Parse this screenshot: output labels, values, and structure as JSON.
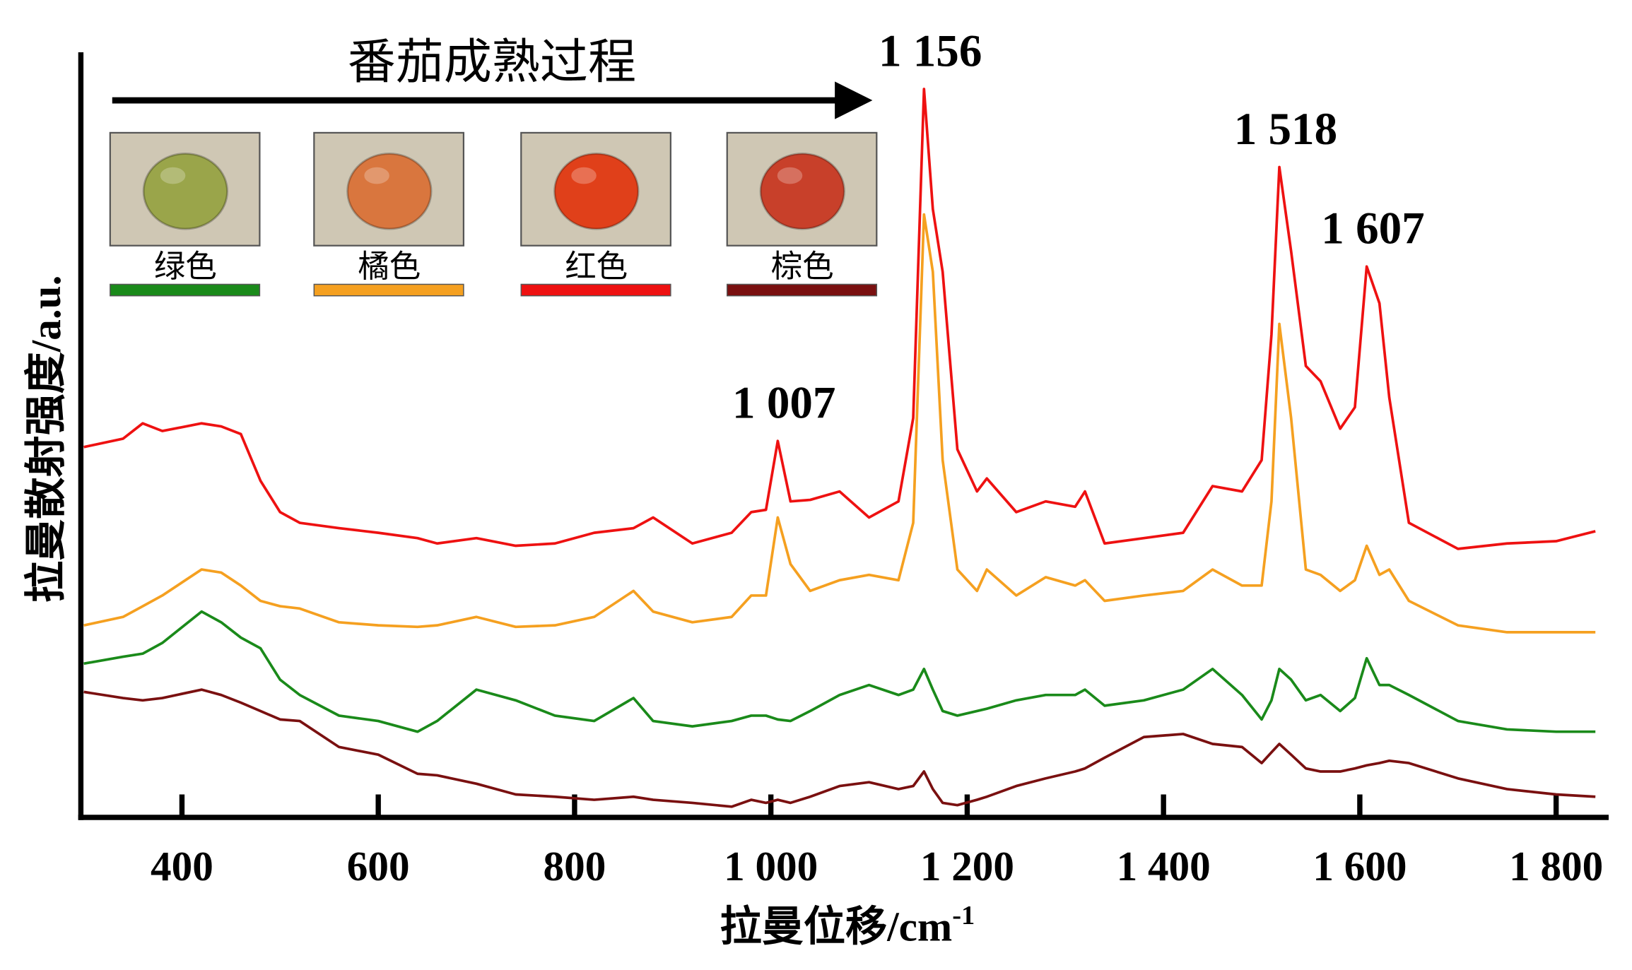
{
  "chart_data": {
    "type": "line",
    "title": "番茄成熟过程",
    "x_label": "拉曼位移/cm",
    "x_label_superscript": "-1",
    "y_label": "拉曼散射强度/a.u.",
    "xlim": [
      297,
      1845
    ],
    "ylim": [
      0,
      100
    ],
    "xticks": [
      400,
      600,
      800,
      {
        "value": 1000,
        "label": "1 000"
      },
      {
        "value": 1200,
        "label": "1 200"
      },
      {
        "value": 1400,
        "label": "1 400"
      },
      {
        "value": 1600,
        "label": "1 600"
      },
      {
        "value": 1800,
        "label": "1 800"
      }
    ],
    "x": [
      300,
      340,
      360,
      380,
      420,
      440,
      460,
      480,
      500,
      520,
      560,
      600,
      640,
      660,
      700,
      740,
      780,
      820,
      860,
      880,
      920,
      960,
      980,
      995,
      1007,
      1020,
      1040,
      1070,
      1100,
      1130,
      1145,
      1156,
      1165,
      1175,
      1190,
      1210,
      1220,
      1250,
      1280,
      1310,
      1320,
      1340,
      1380,
      1420,
      1450,
      1480,
      1500,
      1510,
      1518,
      1530,
      1545,
      1560,
      1580,
      1595,
      1607,
      1620,
      1630,
      1650,
      1700,
      1750,
      1800,
      1840
    ],
    "series": [
      {
        "name": "绿色",
        "color": "#1a8a1a",
        "values": [
          20.1,
          21.0,
          21.4,
          22.8,
          26.9,
          25.5,
          23.5,
          22.1,
          18.0,
          16.0,
          13.3,
          12.6,
          11.2,
          12.6,
          16.7,
          15.3,
          13.3,
          12.6,
          15.6,
          12.6,
          11.9,
          12.6,
          13.3,
          13.3,
          12.8,
          12.6,
          13.9,
          16.0,
          17.3,
          16.0,
          16.7,
          19.4,
          16.7,
          13.9,
          13.3,
          13.9,
          14.2,
          15.3,
          16.0,
          16.0,
          16.7,
          14.6,
          15.3,
          16.7,
          19.4,
          16.0,
          12.8,
          15.3,
          19.4,
          18.0,
          15.3,
          16.0,
          13.9,
          15.6,
          20.8,
          17.3,
          17.3,
          16.0,
          12.6,
          11.5,
          11.2,
          11.2
        ]
      },
      {
        "name": "橘色",
        "color": "#f5a020",
        "values": [
          25.1,
          26.2,
          27.6,
          29.0,
          32.4,
          32.0,
          30.3,
          28.3,
          27.6,
          27.3,
          25.5,
          25.1,
          24.9,
          25.1,
          26.2,
          24.9,
          25.1,
          26.2,
          29.6,
          26.9,
          25.5,
          26.2,
          29.0,
          29.0,
          39.2,
          33.1,
          29.6,
          31.0,
          31.7,
          31.0,
          38.5,
          78.8,
          71.3,
          46.7,
          32.4,
          29.6,
          32.4,
          29.0,
          31.4,
          30.3,
          31.0,
          28.3,
          29.0,
          29.6,
          32.4,
          30.3,
          30.3,
          41.3,
          64.5,
          52.2,
          32.4,
          31.7,
          29.6,
          31.0,
          35.5,
          31.7,
          32.4,
          28.3,
          25.1,
          24.2,
          24.2,
          24.2
        ]
      },
      {
        "name": "红色",
        "color": "#ee1111",
        "values": [
          48.4,
          49.5,
          51.5,
          50.5,
          51.5,
          51.1,
          50.1,
          44.0,
          39.9,
          38.5,
          37.8,
          37.2,
          36.5,
          35.8,
          36.5,
          35.5,
          35.8,
          37.2,
          37.8,
          39.2,
          35.8,
          37.2,
          39.9,
          40.2,
          49.2,
          41.3,
          41.5,
          42.6,
          39.2,
          41.3,
          52.2,
          95.2,
          79.5,
          71.3,
          48.1,
          42.6,
          44.3,
          39.9,
          41.3,
          40.6,
          42.6,
          35.8,
          36.5,
          37.2,
          43.3,
          42.6,
          46.7,
          63.1,
          85.0,
          74.0,
          59.0,
          57.0,
          50.8,
          53.6,
          72.0,
          67.2,
          54.9,
          38.5,
          35.1,
          35.8,
          36.1,
          37.4
        ]
      },
      {
        "name": "棕色",
        "color": "#7a1010",
        "values": [
          16.4,
          15.6,
          15.3,
          15.6,
          16.7,
          16.0,
          15.0,
          13.9,
          12.8,
          12.6,
          9.2,
          8.2,
          5.7,
          5.5,
          4.4,
          3.0,
          2.7,
          2.3,
          2.7,
          2.3,
          1.9,
          1.4,
          2.3,
          1.9,
          2.3,
          1.9,
          2.7,
          4.1,
          4.6,
          3.7,
          4.1,
          6.0,
          3.7,
          1.9,
          1.6,
          2.3,
          2.7,
          4.1,
          5.1,
          6.0,
          6.4,
          7.8,
          10.5,
          10.9,
          9.6,
          9.2,
          7.1,
          8.5,
          9.6,
          8.2,
          6.4,
          6.0,
          6.0,
          6.4,
          6.8,
          7.1,
          7.4,
          7.1,
          5.1,
          3.7,
          3.0,
          2.7
        ]
      }
    ],
    "annotations": [
      {
        "text": "1 007",
        "x": 1007
      },
      {
        "text": "1 156",
        "x": 1156
      },
      {
        "text": "1 518",
        "x": 1518
      },
      {
        "text": "1 607",
        "x": 1607
      }
    ]
  }
}
